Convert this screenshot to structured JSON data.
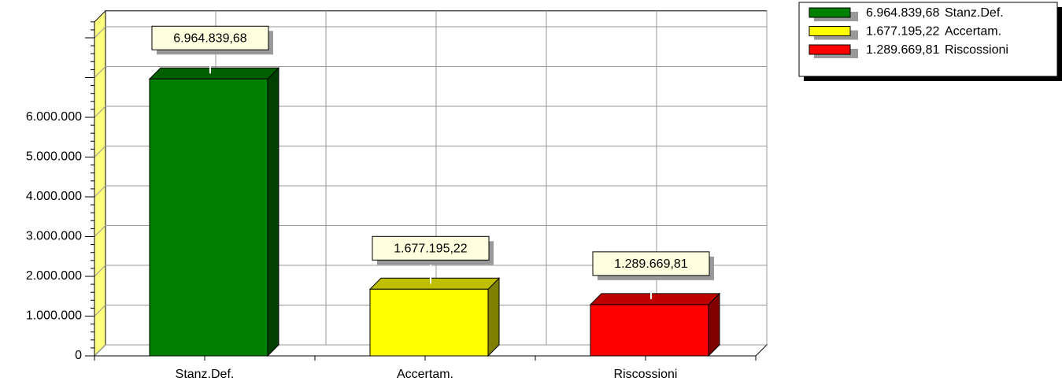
{
  "chart_data": {
    "type": "bar3d",
    "categories": [
      "Stanz.Def.",
      "Accertam.",
      "Riscossioni"
    ],
    "values": [
      6964839.68,
      1677195.22,
      1289669.81
    ],
    "value_labels": [
      "6.964.839,68",
      "1.677.195,22",
      "1.289.669,81"
    ],
    "colors": [
      "#008000",
      "#ffff00",
      "#ff0000"
    ],
    "ylim": [
      0,
      8400000
    ],
    "yticks": [
      0,
      {
        "value": 1000000,
        "label": "1.000.000"
      },
      {
        "value": 2000000,
        "label": "2.000.000"
      },
      {
        "value": 3000000,
        "label": "3.000.000"
      },
      {
        "value": 4000000,
        "label": "4.000.000"
      },
      {
        "value": 5000000,
        "label": "5.000.000"
      },
      {
        "value": 6000000,
        "label": "6.000.000"
      },
      {
        "value": 7000000,
        "label": null
      },
      {
        "value": 8000000,
        "label": null
      }
    ],
    "grid": true,
    "legend": "top-right"
  }
}
